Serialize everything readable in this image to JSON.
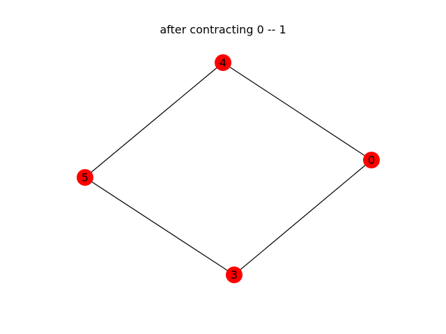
{
  "title": "after contracting 0 -- 1",
  "colors": {
    "node_fill": "#ff0000",
    "edge": "#000000",
    "background": "#ffffff"
  },
  "graph": {
    "nodes": [
      {
        "id": "4",
        "label": "4"
      },
      {
        "id": "0",
        "label": "0"
      },
      {
        "id": "5",
        "label": "5"
      },
      {
        "id": "3",
        "label": "3"
      }
    ],
    "edges": [
      {
        "source": "4",
        "target": "0"
      },
      {
        "source": "4",
        "target": "5"
      },
      {
        "source": "5",
        "target": "3"
      },
      {
        "source": "3",
        "target": "0"
      }
    ]
  }
}
